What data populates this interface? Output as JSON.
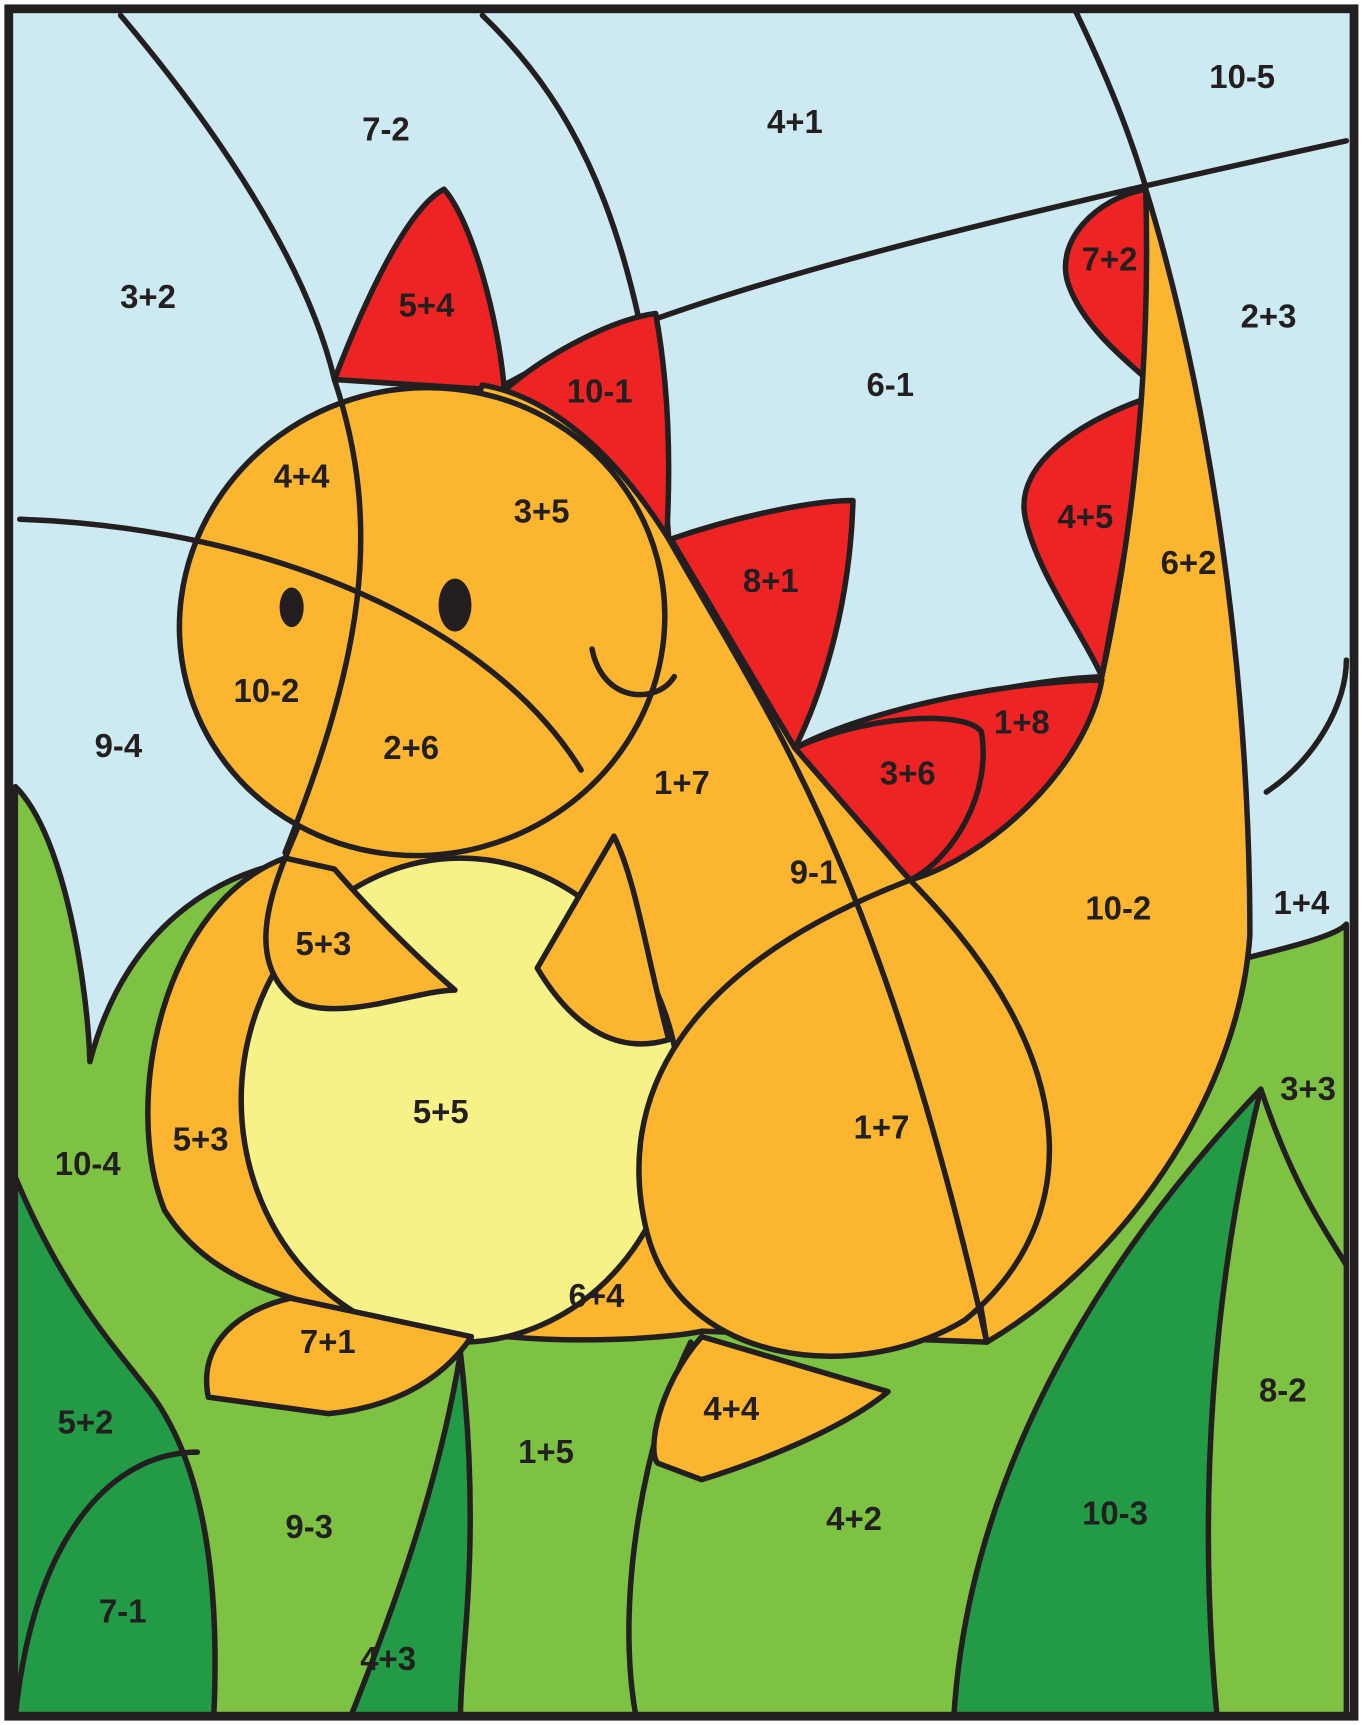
{
  "labels": [
    "10-5",
    "7-2",
    "4+1",
    "3+2",
    "5+4",
    "10-1",
    "7+2",
    "2+3",
    "6-1",
    "4+4",
    "3+5",
    "8+1",
    "4+5",
    "6+2",
    "10-2",
    "2+6",
    "9-4",
    "1+8",
    "3+6",
    "1+7",
    "9-1",
    "10-2",
    "1+4",
    "5+3",
    "5+5",
    "1+7",
    "5+3",
    "3+3",
    "10-4",
    "6+4",
    "7+1",
    "4+4",
    "5+2",
    "1+5",
    "8-2",
    "4+2",
    "10-3",
    "9-3",
    "7-1",
    "4+3"
  ]
}
